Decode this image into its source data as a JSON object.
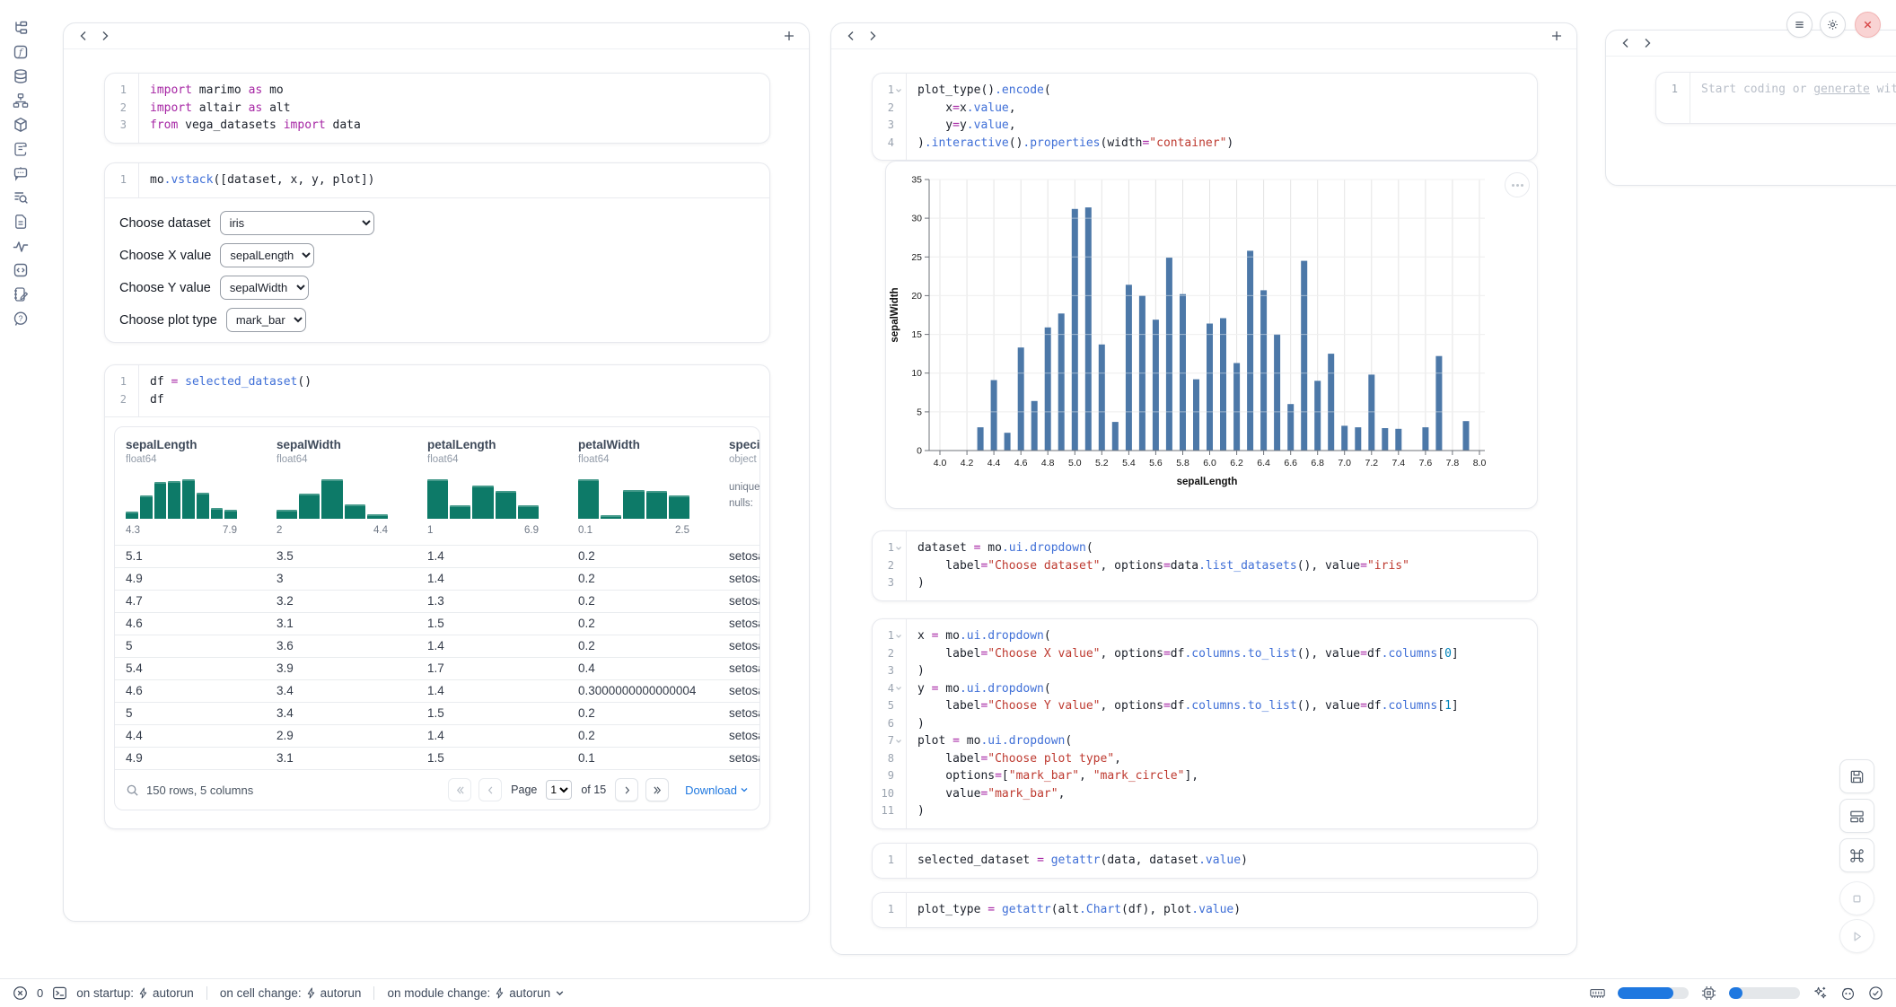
{
  "sidebar": {
    "icons": [
      "file-tree-icon",
      "function-icon",
      "database-icon",
      "hierarchy-icon",
      "package-icon",
      "script-icon",
      "chat-icon",
      "logs-icon",
      "document-icon",
      "activity-icon",
      "snippets-icon",
      "scratchpad-icon",
      "help-icon"
    ]
  },
  "left_panel": {
    "cells": {
      "imports": {
        "lines": [
          [
            [
              "kw",
              "import"
            ],
            [
              "pl",
              " marimo "
            ],
            [
              "kw",
              "as"
            ],
            [
              "pl",
              " mo"
            ]
          ],
          [
            [
              "kw",
              "import"
            ],
            [
              "pl",
              " altair "
            ],
            [
              "kw",
              "as"
            ],
            [
              "pl",
              " alt"
            ]
          ],
          [
            [
              "kw",
              "from"
            ],
            [
              "pl",
              " vega_datasets "
            ],
            [
              "kw",
              "import"
            ],
            [
              "pl",
              " data"
            ]
          ]
        ]
      },
      "vstack": {
        "lines": [
          [
            [
              "pl",
              "mo"
            ],
            [
              "fn",
              ".vstack"
            ],
            [
              "pl",
              "([dataset, x, y, plot])"
            ]
          ]
        ],
        "dropdowns": [
          {
            "name": "dataset-select",
            "label": "Choose dataset",
            "value": "iris"
          },
          {
            "name": "x-select",
            "label": "Choose X value",
            "value": "sepalLength"
          },
          {
            "name": "y-select",
            "label": "Choose Y value",
            "value": "sepalWidth"
          },
          {
            "name": "plot-type-select",
            "label": "Choose plot type",
            "value": "mark_bar"
          }
        ]
      },
      "dataframe": {
        "lines": [
          [
            [
              "pl",
              "df "
            ],
            [
              "kw",
              "="
            ],
            [
              "pl",
              " "
            ],
            [
              "fn",
              "selected_dataset"
            ],
            [
              "pl",
              "()"
            ]
          ],
          [
            [
              "pl",
              "df"
            ]
          ]
        ]
      }
    }
  },
  "table": {
    "columns": [
      {
        "name": "sepalLength",
        "dtype": "float64",
        "hist": [
          13,
          50,
          82,
          84,
          88,
          57,
          20,
          17
        ],
        "min": "4.3",
        "max": "7.9"
      },
      {
        "name": "sepalWidth",
        "dtype": "float64",
        "hist": [
          16,
          55,
          88,
          30,
          6
        ],
        "min": "2",
        "max": "4.4"
      },
      {
        "name": "petalLength",
        "dtype": "float64",
        "hist": [
          88,
          27,
          72,
          60,
          27
        ],
        "min": "1",
        "max": "6.9"
      },
      {
        "name": "petalWidth",
        "dtype": "float64",
        "hist": [
          88,
          5,
          62,
          60,
          50
        ],
        "min": "0.1",
        "max": "2.5"
      },
      {
        "name": "species",
        "dtype": "object",
        "stats": [
          "unique:",
          "nulls:"
        ]
      }
    ],
    "rows": [
      [
        "5.1",
        "3.5",
        "1.4",
        "0.2",
        "setosa"
      ],
      [
        "4.9",
        "3",
        "1.4",
        "0.2",
        "setosa"
      ],
      [
        "4.7",
        "3.2",
        "1.3",
        "0.2",
        "setosa"
      ],
      [
        "4.6",
        "3.1",
        "1.5",
        "0.2",
        "setosa"
      ],
      [
        "5",
        "3.6",
        "1.4",
        "0.2",
        "setosa"
      ],
      [
        "5.4",
        "3.9",
        "1.7",
        "0.4",
        "setosa"
      ],
      [
        "4.6",
        "3.4",
        "1.4",
        "0.3000000000000004",
        "setosa"
      ],
      [
        "5",
        "3.4",
        "1.5",
        "0.2",
        "setosa"
      ],
      [
        "4.4",
        "2.9",
        "1.4",
        "0.2",
        "setosa"
      ],
      [
        "4.9",
        "3.1",
        "1.5",
        "0.1",
        "setosa"
      ]
    ],
    "footer": {
      "summary": "150 rows, 5 columns",
      "page_label": "Page",
      "page": "1",
      "of_label": "of 15",
      "download_label": "Download"
    }
  },
  "middle_panel": {
    "cells": {
      "chart_code": {
        "folds": [
          1
        ],
        "lines": [
          [
            [
              "pl",
              "plot_type()"
            ],
            [
              "fn",
              ".encode"
            ],
            [
              "pl",
              "("
            ]
          ],
          [
            [
              "pl",
              "    x"
            ],
            [
              "kw",
              "="
            ],
            [
              "pl",
              "x"
            ],
            [
              "fn",
              ".value"
            ],
            [
              "pl",
              ","
            ]
          ],
          [
            [
              "pl",
              "    y"
            ],
            [
              "kw",
              "="
            ],
            [
              "pl",
              "y"
            ],
            [
              "fn",
              ".value"
            ],
            [
              "pl",
              ","
            ]
          ],
          [
            [
              "pl",
              ")"
            ],
            [
              "fn",
              ".interactive"
            ],
            [
              "pl",
              "()"
            ],
            [
              "fn",
              ".properties"
            ],
            [
              "pl",
              "(width"
            ],
            [
              "kw",
              "="
            ],
            [
              "str",
              "\"container\""
            ],
            [
              "pl",
              ")"
            ]
          ]
        ]
      },
      "dataset_code": {
        "folds": [
          1
        ],
        "lines": [
          [
            [
              "pl",
              "dataset "
            ],
            [
              "kw",
              "="
            ],
            [
              "pl",
              " mo"
            ],
            [
              "fn",
              ".ui.dropdown"
            ],
            [
              "pl",
              "("
            ]
          ],
          [
            [
              "pl",
              "    label"
            ],
            [
              "kw",
              "="
            ],
            [
              "str",
              "\"Choose dataset\""
            ],
            [
              "pl",
              ", options"
            ],
            [
              "kw",
              "="
            ],
            [
              "pl",
              "data"
            ],
            [
              "fn",
              ".list_datasets"
            ],
            [
              "pl",
              "(), value"
            ],
            [
              "kw",
              "="
            ],
            [
              "str",
              "\"iris\""
            ]
          ],
          [
            [
              "pl",
              ")"
            ]
          ]
        ]
      },
      "xyplot_code": {
        "folds": [
          1,
          4,
          7
        ],
        "lines": [
          [
            [
              "pl",
              "x "
            ],
            [
              "kw",
              "="
            ],
            [
              "pl",
              " mo"
            ],
            [
              "fn",
              ".ui.dropdown"
            ],
            [
              "pl",
              "("
            ]
          ],
          [
            [
              "pl",
              "    label"
            ],
            [
              "kw",
              "="
            ],
            [
              "str",
              "\"Choose X value\""
            ],
            [
              "pl",
              ", options"
            ],
            [
              "kw",
              "="
            ],
            [
              "pl",
              "df"
            ],
            [
              "fn",
              ".columns.to_list"
            ],
            [
              "pl",
              "(), value"
            ],
            [
              "kw",
              "="
            ],
            [
              "pl",
              "df"
            ],
            [
              "fn",
              ".columns"
            ],
            [
              "pl",
              "["
            ],
            [
              "num",
              "0"
            ],
            [
              "pl",
              "]"
            ]
          ],
          [
            [
              "pl",
              ")"
            ]
          ],
          [
            [
              "pl",
              "y "
            ],
            [
              "kw",
              "="
            ],
            [
              "pl",
              " mo"
            ],
            [
              "fn",
              ".ui.dropdown"
            ],
            [
              "pl",
              "("
            ]
          ],
          [
            [
              "pl",
              "    label"
            ],
            [
              "kw",
              "="
            ],
            [
              "str",
              "\"Choose Y value\""
            ],
            [
              "pl",
              ", options"
            ],
            [
              "kw",
              "="
            ],
            [
              "pl",
              "df"
            ],
            [
              "fn",
              ".columns.to_list"
            ],
            [
              "pl",
              "(), value"
            ],
            [
              "kw",
              "="
            ],
            [
              "pl",
              "df"
            ],
            [
              "fn",
              ".columns"
            ],
            [
              "pl",
              "["
            ],
            [
              "num",
              "1"
            ],
            [
              "pl",
              "]"
            ]
          ],
          [
            [
              "pl",
              ")"
            ]
          ],
          [
            [
              "pl",
              "plot "
            ],
            [
              "kw",
              "="
            ],
            [
              "pl",
              " mo"
            ],
            [
              "fn",
              ".ui.dropdown"
            ],
            [
              "pl",
              "("
            ]
          ],
          [
            [
              "pl",
              "    label"
            ],
            [
              "kw",
              "="
            ],
            [
              "str",
              "\"Choose plot type\""
            ],
            [
              "pl",
              ","
            ]
          ],
          [
            [
              "pl",
              "    options"
            ],
            [
              "kw",
              "="
            ],
            [
              "pl",
              "["
            ],
            [
              "str",
              "\"mark_bar\""
            ],
            [
              "pl",
              ", "
            ],
            [
              "str",
              "\"mark_circle\""
            ],
            [
              "pl",
              "],"
            ]
          ],
          [
            [
              "pl",
              "    value"
            ],
            [
              "kw",
              "="
            ],
            [
              "str",
              "\"mark_bar\""
            ],
            [
              "pl",
              ","
            ]
          ],
          [
            [
              "pl",
              ")"
            ]
          ]
        ]
      },
      "selected_code": {
        "lines": [
          [
            [
              "pl",
              "selected_dataset "
            ],
            [
              "kw",
              "="
            ],
            [
              "pl",
              " "
            ],
            [
              "fn",
              "getattr"
            ],
            [
              "pl",
              "(data, dataset"
            ],
            [
              "fn",
              ".value"
            ],
            [
              "pl",
              ")"
            ]
          ]
        ]
      },
      "plot_type_code": {
        "lines": [
          [
            [
              "pl",
              "plot_type "
            ],
            [
              "kw",
              "="
            ],
            [
              "pl",
              " "
            ],
            [
              "fn",
              "getattr"
            ],
            [
              "pl",
              "(alt"
            ],
            [
              "fn",
              ".Chart"
            ],
            [
              "pl",
              "(df), plot"
            ],
            [
              "fn",
              ".value"
            ],
            [
              "pl",
              ")"
            ]
          ]
        ]
      }
    }
  },
  "right_panel": {
    "line_number": "1",
    "placeholder": {
      "prefix": "Start coding or ",
      "link": "generate",
      "suffix": " with AI"
    }
  },
  "chart_data": {
    "type": "bar",
    "title": "",
    "xlabel": "sepalLength",
    "ylabel": "sepalWidth",
    "x": [
      4.3,
      4.4,
      4.5,
      4.6,
      4.7,
      4.8,
      4.9,
      5.0,
      5.1,
      5.2,
      5.3,
      5.4,
      5.5,
      5.6,
      5.7,
      5.8,
      5.9,
      6.0,
      6.1,
      6.2,
      6.3,
      6.4,
      6.5,
      6.6,
      6.7,
      6.8,
      6.9,
      7.0,
      7.1,
      7.2,
      7.3,
      7.4,
      7.6,
      7.7,
      7.9
    ],
    "values": [
      3.0,
      9.1,
      2.3,
      13.3,
      6.4,
      15.9,
      17.7,
      31.2,
      31.4,
      13.7,
      3.7,
      21.4,
      20.0,
      16.9,
      24.9,
      20.2,
      9.2,
      16.4,
      17.1,
      11.3,
      25.8,
      20.7,
      15.0,
      6.0,
      24.5,
      9.0,
      12.5,
      3.2,
      3.0,
      9.8,
      2.9,
      2.8,
      3.0,
      12.2,
      3.8
    ],
    "xlim": [
      3.92,
      8.04
    ],
    "ylim": [
      0,
      35
    ],
    "x_tick_range": [
      4.0,
      8.0
    ],
    "x_tick_step": 0.2,
    "y_ticks": [
      0,
      5,
      10,
      15,
      20,
      25,
      30,
      35
    ],
    "bar_color": "#4C78A8",
    "grid": true,
    "legend": false
  },
  "status_bar": {
    "error_count": "0",
    "items": [
      {
        "label": "on startup:",
        "value": "autorun"
      },
      {
        "label": "on cell change:",
        "value": "autorun"
      },
      {
        "label": "on module change:",
        "value": "autorun"
      }
    ],
    "resources": {
      "ram_pct": 78,
      "cpu_pct": 19
    },
    "accent_color": "#1f78e0"
  }
}
